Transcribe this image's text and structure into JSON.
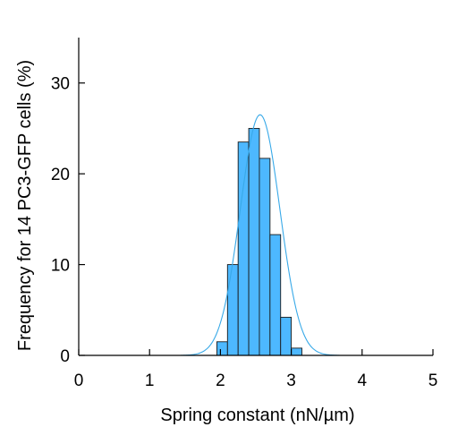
{
  "chart_data": {
    "type": "bar",
    "title": "",
    "xlabel": "Spring constant (nN/µm)",
    "ylabel": "Frequency for 14 PC3-GFP cells (%)",
    "xlim": [
      0,
      5
    ],
    "ylim": [
      0,
      35
    ],
    "xticks": [
      "0",
      "1",
      "2",
      "3",
      "4",
      "5"
    ],
    "yticks": [
      "0",
      "10",
      "20",
      "30"
    ],
    "bin_width": 0.15,
    "bins": [
      {
        "x": 1.95,
        "value": 1.5
      },
      {
        "x": 2.1,
        "value": 10.0
      },
      {
        "x": 2.25,
        "value": 23.5
      },
      {
        "x": 2.4,
        "value": 25.0
      },
      {
        "x": 2.55,
        "value": 21.7
      },
      {
        "x": 2.7,
        "value": 13.3
      },
      {
        "x": 2.85,
        "value": 4.2
      },
      {
        "x": 3.0,
        "value": 0.8
      }
    ],
    "fit": {
      "type": "gaussian",
      "peak": 26.5,
      "center": 2.56,
      "sigma": 0.28,
      "color": "#38a9e8"
    },
    "bar_color": "#4db8ff",
    "grid": false,
    "legend": "none"
  }
}
